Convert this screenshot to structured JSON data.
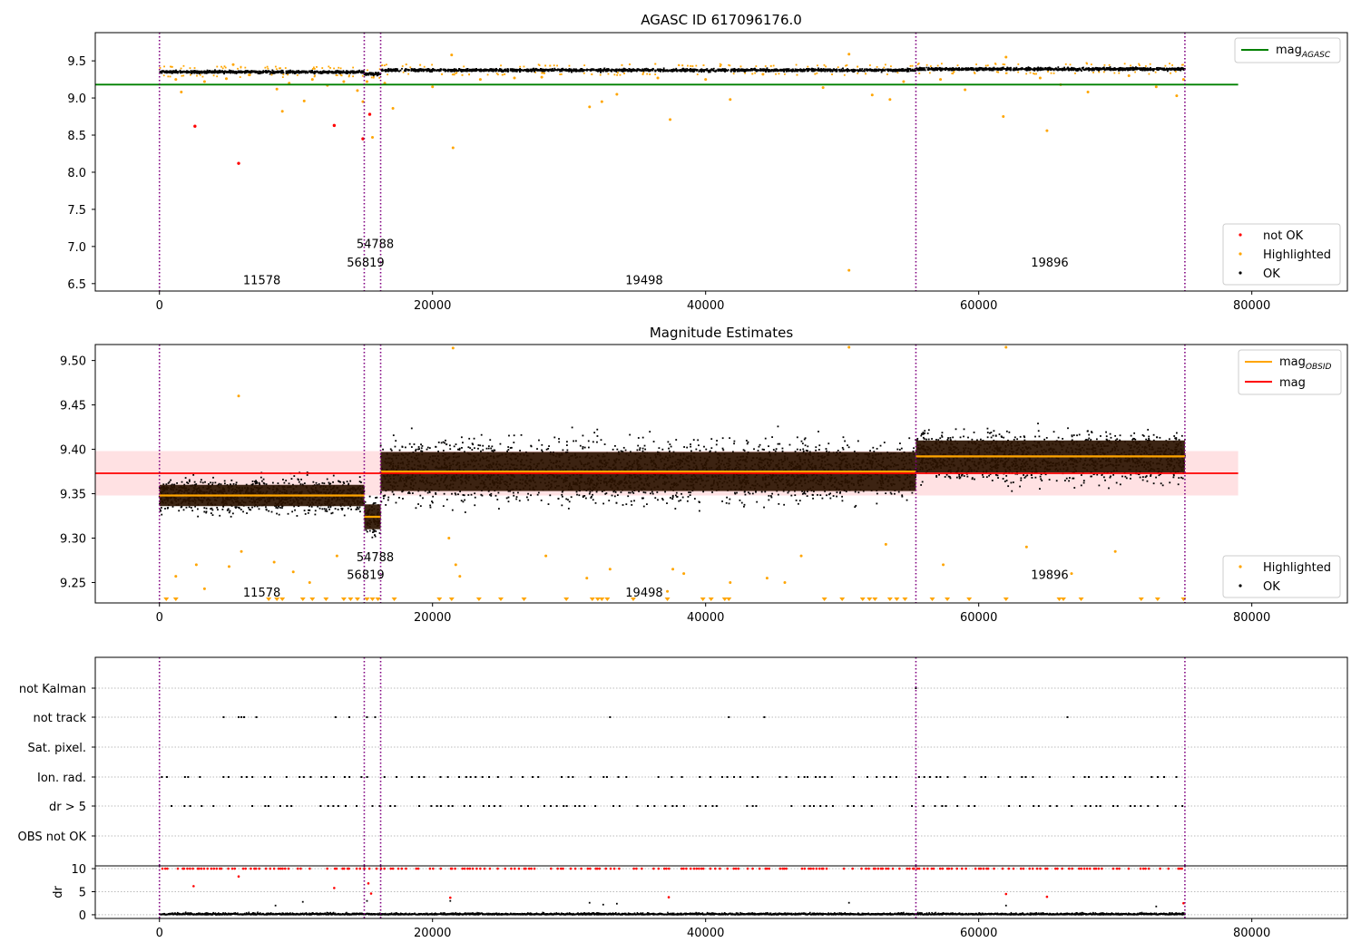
{
  "figure": {
    "panel1": {
      "title": "AGASC ID 617096176.0",
      "legend_line": {
        "label": "mag",
        "subscript": "AGASC"
      },
      "legend_points": [
        "not OK",
        "Highlighted",
        "OK"
      ]
    },
    "panel2": {
      "title": "Magnitude Estimates",
      "legend_lines": [
        {
          "label": "mag",
          "subscript": "OBSID"
        },
        {
          "label": "mag",
          "subscript": ""
        }
      ],
      "legend_points": [
        "Highlighted",
        "OK"
      ]
    },
    "panel3": {
      "flag_labels": [
        "not Kalman",
        "not track",
        "Sat. pixel.",
        "Ion. rad.",
        "dr > 5",
        "OBS not OK"
      ]
    },
    "panel4": {
      "ylabel": "dr"
    }
  },
  "colors": {
    "ok": "#000000",
    "highlighted": "#ffa500",
    "not_ok": "#ff0000",
    "agasc_line": "#008000",
    "mag_line": "#ff0000",
    "obsid_line": "#ffa500",
    "band": "#ffc8cc",
    "obs_boundary": "#800080",
    "obsid_fill": "#2b1200"
  },
  "chart_data": [
    {
      "type": "scatter",
      "title": "AGASC ID 617096176.0",
      "xlim": [
        -4700,
        87000
      ],
      "ylim": [
        6.4,
        9.88
      ],
      "xticks": [
        0,
        20000,
        40000,
        60000,
        80000
      ],
      "yticks": [
        6.5,
        7.0,
        7.5,
        8.0,
        8.5,
        9.0,
        9.5
      ],
      "mag_agasc": 9.18,
      "mag_agasc_xrange": [
        -4700,
        79000
      ],
      "obs_boundaries": [
        0,
        15000,
        16200,
        55400,
        75100
      ],
      "obsids": [
        {
          "label": "11578",
          "x": 7500,
          "y": 6.55
        },
        {
          "label": "54788",
          "x": 15800,
          "y": 7.04
        },
        {
          "label": "56819",
          "x": 15100,
          "y": 6.79
        },
        {
          "label": "19498",
          "x": 35500,
          "y": 6.55
        },
        {
          "label": "19896",
          "x": 65200,
          "y": 6.79
        }
      ],
      "segments": [
        {
          "x": [
            0,
            15000
          ],
          "mag": 9.35
        },
        {
          "x": [
            15000,
            16200
          ],
          "mag": 9.325
        },
        {
          "x": [
            16200,
            55400
          ],
          "mag": 9.375
        },
        {
          "x": [
            55400,
            75100
          ],
          "mag": 9.39
        }
      ],
      "not_ok_points": [
        [
          2600,
          8.62
        ],
        [
          5800,
          8.12
        ],
        [
          12800,
          8.63
        ],
        [
          14900,
          8.45
        ],
        [
          15400,
          8.78
        ]
      ],
      "highlighted_outliers": [
        [
          1200,
          9.25
        ],
        [
          1600,
          9.08
        ],
        [
          3300,
          9.22
        ],
        [
          4900,
          9.26
        ],
        [
          5400,
          9.45
        ],
        [
          6600,
          9.31
        ],
        [
          8600,
          9.12
        ],
        [
          9000,
          8.82
        ],
        [
          9500,
          9.2
        ],
        [
          10600,
          8.96
        ],
        [
          11200,
          9.25
        ],
        [
          12300,
          9.17
        ],
        [
          13500,
          9.22
        ],
        [
          14500,
          9.1
        ],
        [
          14900,
          8.95
        ],
        [
          15200,
          9.22
        ],
        [
          15600,
          8.47
        ],
        [
          16500,
          9.2
        ],
        [
          17100,
          8.86
        ],
        [
          20000,
          9.15
        ],
        [
          21400,
          9.58
        ],
        [
          21500,
          8.33
        ],
        [
          23500,
          9.25
        ],
        [
          26000,
          9.27
        ],
        [
          28000,
          9.28
        ],
        [
          31500,
          8.88
        ],
        [
          32400,
          8.95
        ],
        [
          33500,
          9.05
        ],
        [
          36500,
          9.27
        ],
        [
          37400,
          8.71
        ],
        [
          40000,
          9.25
        ],
        [
          41800,
          8.98
        ],
        [
          44200,
          9.32
        ],
        [
          48600,
          9.14
        ],
        [
          50500,
          9.59
        ],
        [
          50500,
          6.68
        ],
        [
          52200,
          9.04
        ],
        [
          53500,
          8.98
        ],
        [
          54500,
          9.22
        ],
        [
          57200,
          9.25
        ],
        [
          59000,
          9.11
        ],
        [
          61800,
          8.75
        ],
        [
          62000,
          9.55
        ],
        [
          64500,
          9.27
        ],
        [
          65000,
          8.56
        ],
        [
          66000,
          9.18
        ],
        [
          68000,
          9.08
        ],
        [
          71000,
          9.3
        ],
        [
          73000,
          9.15
        ],
        [
          74500,
          9.03
        ],
        [
          75000,
          9.25
        ]
      ]
    },
    {
      "type": "scatter",
      "title": "Magnitude Estimates",
      "xlim": [
        -4700,
        87000
      ],
      "ylim": [
        9.227,
        9.518
      ],
      "xticks": [
        0,
        20000,
        40000,
        60000,
        80000
      ],
      "yticks": [
        9.25,
        9.3,
        9.35,
        9.4,
        9.45,
        9.5
      ],
      "mag": 9.373,
      "mag_band": [
        9.348,
        9.398
      ],
      "mag_xrange": [
        -4700,
        79000
      ],
      "obsid_segments": [
        {
          "x": [
            0,
            15000
          ],
          "mag_obsid": 9.348,
          "lo": 9.336,
          "hi": 9.36
        },
        {
          "x": [
            15000,
            16200
          ],
          "mag_obsid": 9.324,
          "lo": 9.31,
          "hi": 9.338
        },
        {
          "x": [
            16200,
            55400
          ],
          "mag_obsid": 9.375,
          "lo": 9.353,
          "hi": 9.397
        },
        {
          "x": [
            55400,
            75100
          ],
          "mag_obsid": 9.392,
          "lo": 9.374,
          "hi": 9.41
        }
      ],
      "highlighted_outliers": [
        [
          5800,
          9.46
        ],
        [
          1200,
          9.257
        ],
        [
          2700,
          9.27
        ],
        [
          3300,
          9.243
        ],
        [
          5100,
          9.268
        ],
        [
          6000,
          9.285
        ],
        [
          8400,
          9.273
        ],
        [
          9800,
          9.262
        ],
        [
          11000,
          9.25
        ],
        [
          13000,
          9.28
        ],
        [
          21500,
          9.514
        ],
        [
          21700,
          9.27
        ],
        [
          21200,
          9.3
        ],
        [
          22000,
          9.257
        ],
        [
          28300,
          9.28
        ],
        [
          31300,
          9.255
        ],
        [
          33000,
          9.265
        ],
        [
          37200,
          9.24
        ],
        [
          37600,
          9.265
        ],
        [
          38400,
          9.26
        ],
        [
          41800,
          9.25
        ],
        [
          44500,
          9.255
        ],
        [
          45800,
          9.25
        ],
        [
          47000,
          9.28
        ],
        [
          50500,
          9.515
        ],
        [
          53200,
          9.293
        ],
        [
          57400,
          9.27
        ],
        [
          62000,
          9.515
        ],
        [
          63500,
          9.29
        ],
        [
          66800,
          9.26
        ],
        [
          70000,
          9.285
        ]
      ],
      "below_limit_x": [
        500,
        1200,
        8000,
        8600,
        9000,
        10500,
        11200,
        12200,
        13500,
        14000,
        14500,
        15200,
        15600,
        16000,
        17200,
        20500,
        21400,
        23400,
        25000,
        26700,
        29800,
        31700,
        32100,
        32400,
        32800,
        34700,
        37200,
        39800,
        40400,
        41400,
        41700,
        48700,
        50000,
        51500,
        52000,
        52400,
        53500,
        54000,
        54600,
        56600,
        57700,
        59300,
        62000,
        65900,
        66200,
        67500,
        71900,
        73100,
        75000
      ]
    },
    {
      "type": "scatter",
      "title": "",
      "xlim": [
        -4700,
        87000
      ],
      "categories": [
        "not Kalman",
        "not track",
        "Sat. pixel.",
        "Ion. rad.",
        "dr > 5",
        "OBS not OK"
      ],
      "not_kalman_x": [
        55400
      ],
      "not_track_x": [
        4700,
        5800,
        6000,
        6200,
        7100,
        12900,
        13900,
        15200,
        15800,
        33000,
        41700,
        44300,
        66500
      ],
      "ion_rad_step": 420,
      "dr_gt5_step": 420
    },
    {
      "type": "scatter",
      "title": "",
      "ylabel": "dr",
      "xlim": [
        -4700,
        87000
      ],
      "ylim": [
        -0.8,
        10.6
      ],
      "xticks": [
        0,
        20000,
        40000,
        60000,
        80000
      ],
      "yticks": [
        0,
        5,
        10
      ],
      "capped_value": 10,
      "red_outliers": [
        [
          2500,
          6.2
        ],
        [
          5800,
          8.3
        ],
        [
          12800,
          5.8
        ],
        [
          15300,
          6.8
        ],
        [
          15500,
          4.6
        ],
        [
          21300,
          3.7
        ],
        [
          37300,
          3.8
        ],
        [
          62000,
          4.5
        ],
        [
          65000,
          3.9
        ],
        [
          75000,
          2.5
        ]
      ],
      "black_outliers": [
        [
          8500,
          2.0
        ],
        [
          10500,
          2.8
        ],
        [
          15200,
          3.0
        ],
        [
          21300,
          3.0
        ],
        [
          31500,
          2.6
        ],
        [
          32500,
          2.2
        ],
        [
          33500,
          2.4
        ],
        [
          50500,
          2.6
        ],
        [
          62000,
          2.0
        ],
        [
          73000,
          1.8
        ]
      ]
    }
  ]
}
